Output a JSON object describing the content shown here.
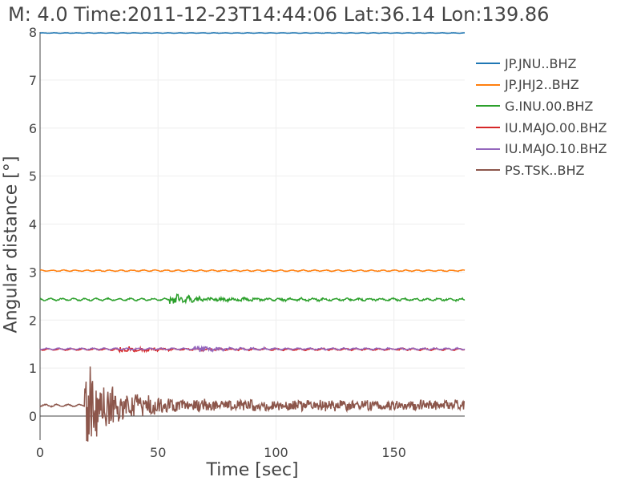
{
  "chart_data": {
    "type": "line",
    "title": "M: 4.0 Time:2011-12-23T14:44:06 Lat:36.14 Lon:139.86",
    "xlabel": "Time [sec]",
    "ylabel": "Angular distance [°]",
    "xlim": [
      0,
      180
    ],
    "ylim": [
      -0.5,
      8
    ],
    "xticks": [
      0,
      50,
      100,
      150
    ],
    "yticks": [
      0,
      1,
      2,
      3,
      4,
      5,
      6,
      7,
      8
    ],
    "grid": true,
    "legend_position": "right",
    "series": [
      {
        "name": "JP.JNU..BHZ",
        "color": "#1f77b4",
        "baseline": 7.98,
        "amplitude": 0.004,
        "arrival": null,
        "burst": 0
      },
      {
        "name": "JP.JHJ2..BHZ",
        "color": "#ff7f0e",
        "baseline": 3.03,
        "amplitude": 0.012,
        "arrival": null,
        "burst": 0
      },
      {
        "name": "G.INU.00.BHZ",
        "color": "#2ca02c",
        "baseline": 2.43,
        "amplitude": 0.02,
        "arrival": 55,
        "burst": 0.1
      },
      {
        "name": "IU.MAJO.00.BHZ",
        "color": "#d62728",
        "baseline": 1.39,
        "amplitude": 0.015,
        "arrival": 33,
        "burst": 0.06
      },
      {
        "name": "IU.MAJO.10.BHZ",
        "color": "#9467bd",
        "baseline": 1.4,
        "amplitude": 0.015,
        "arrival": 65,
        "burst": 0.05
      },
      {
        "name": "PS.TSK..BHZ",
        "color": "#8c564b",
        "baseline": 0.22,
        "amplitude": 0.02,
        "arrival": 19,
        "burst": 0.85
      }
    ]
  }
}
